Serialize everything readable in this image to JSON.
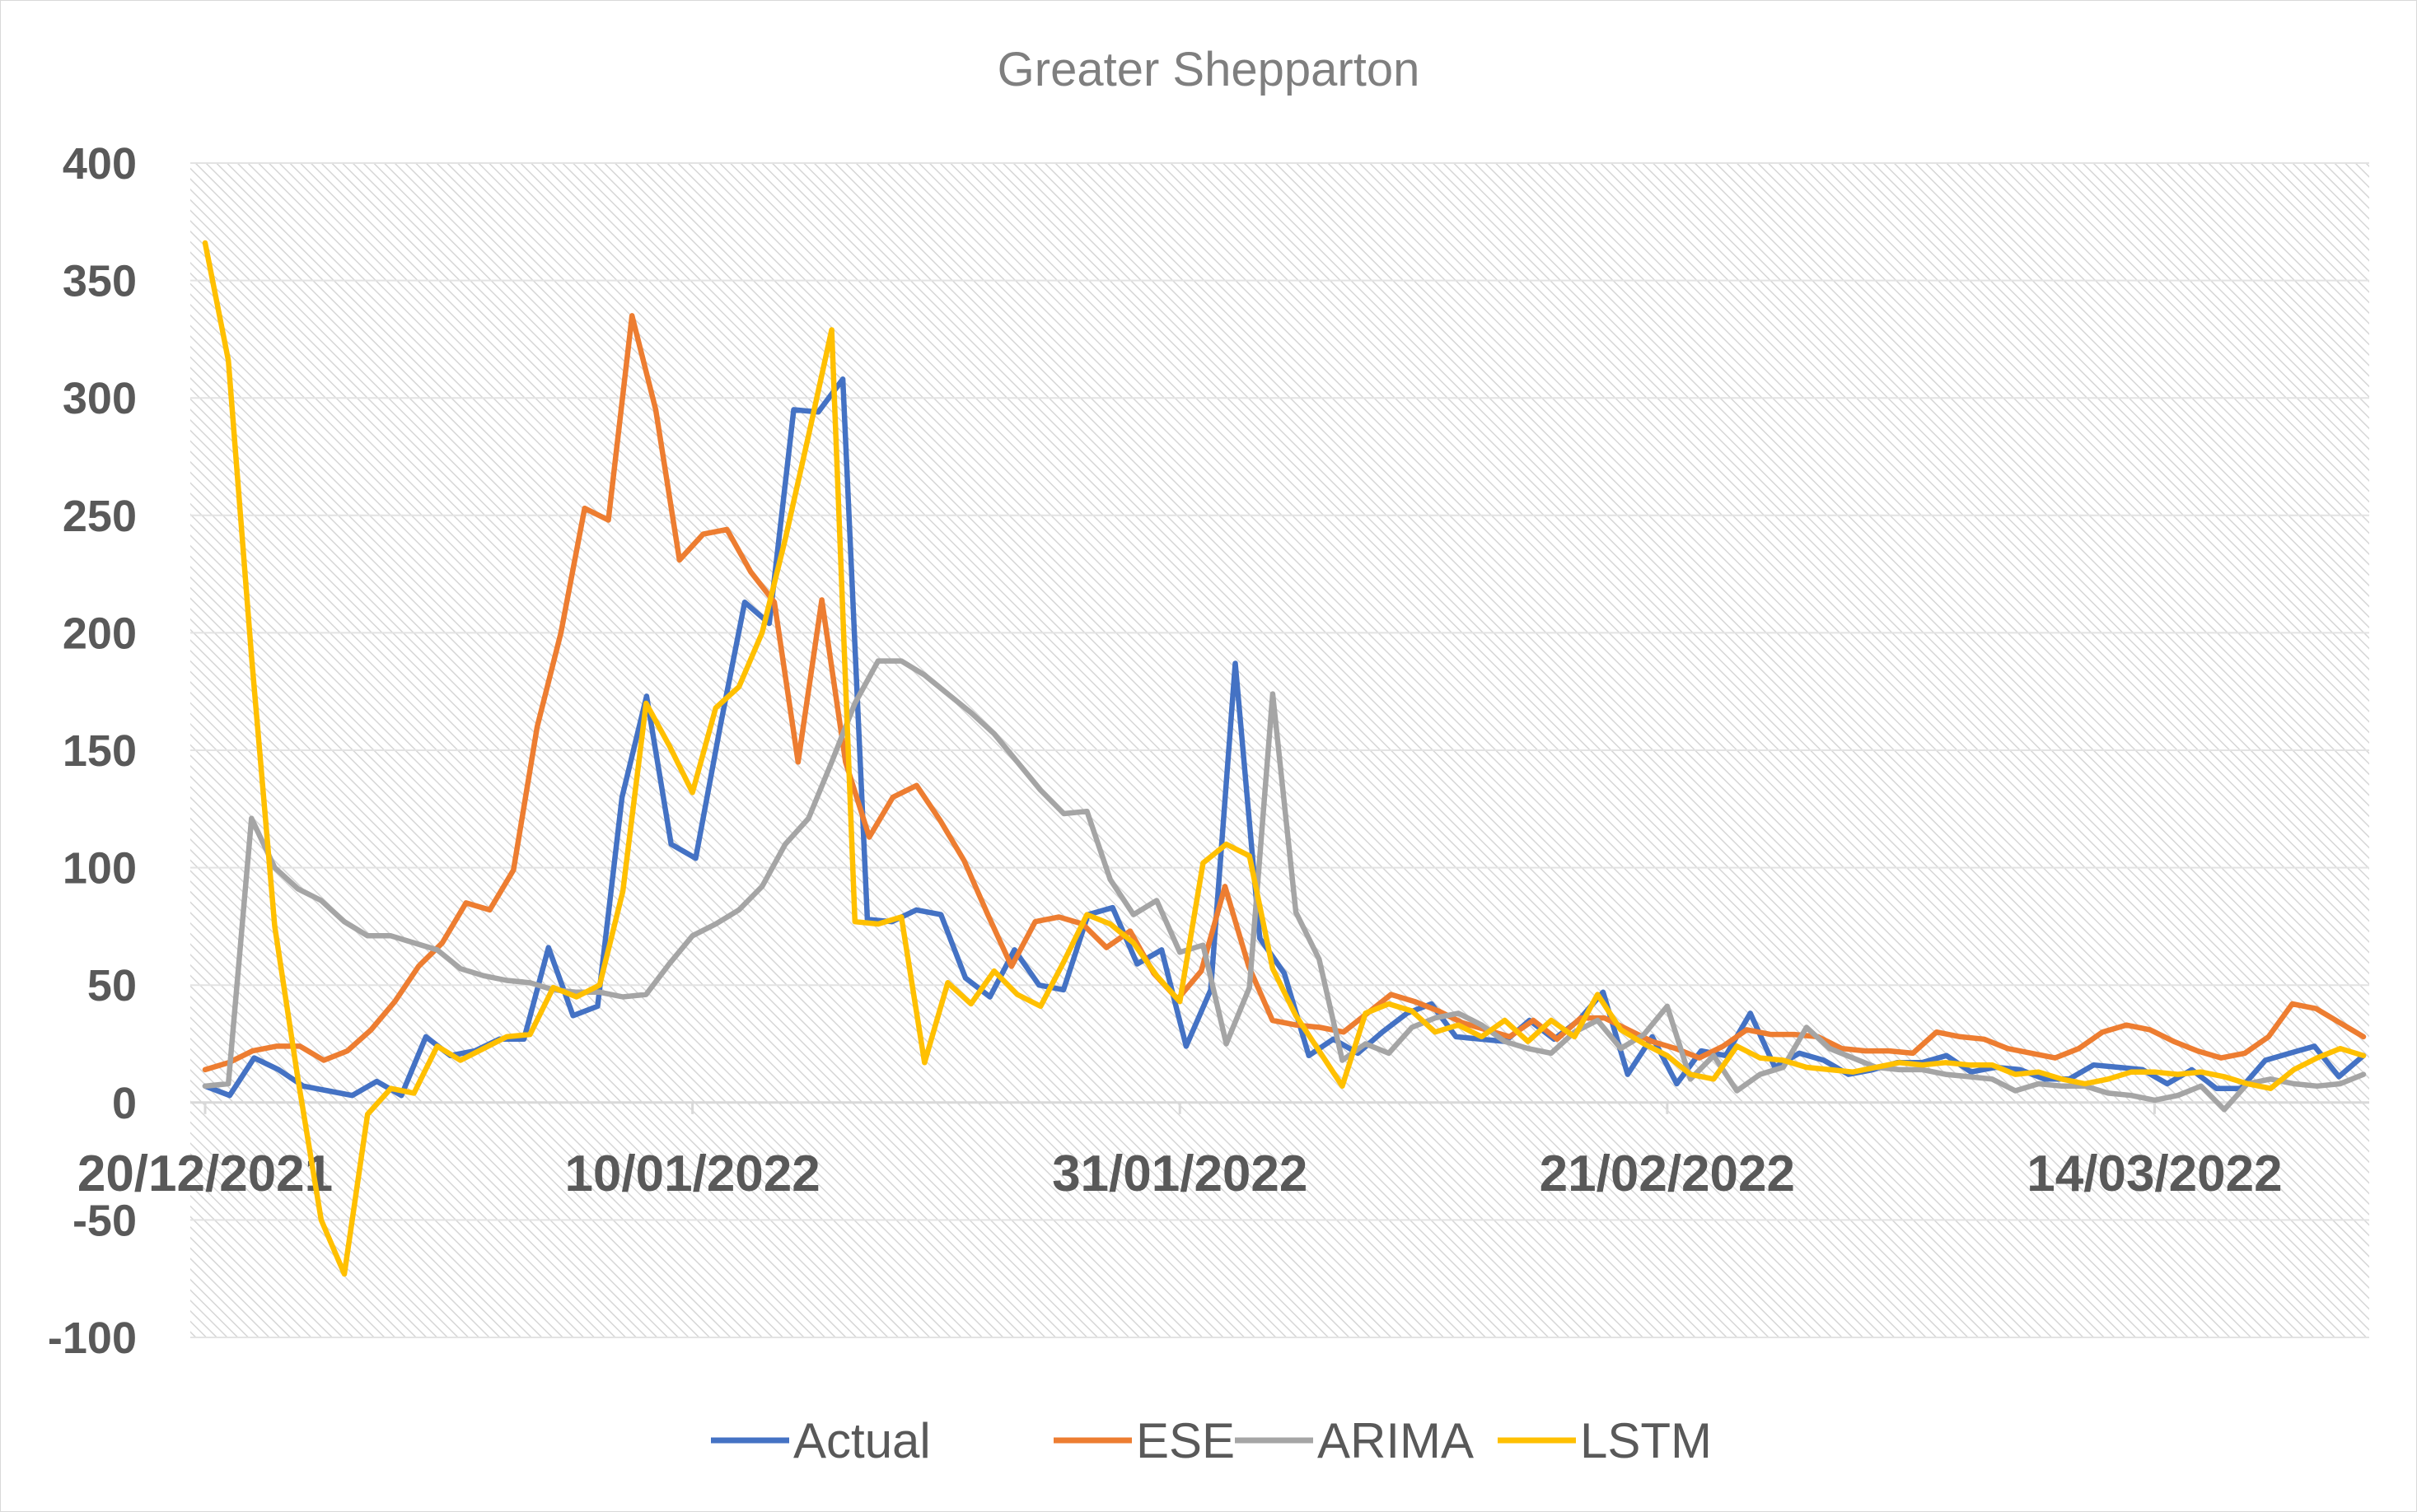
{
  "chart_data": {
    "type": "line",
    "title": "Greater Shepparton",
    "xlabel": "",
    "ylabel": "",
    "ylim": [
      -100,
      400
    ],
    "yticks": [
      -100,
      -50,
      0,
      50,
      100,
      150,
      200,
      250,
      300,
      350,
      400
    ],
    "x_start": "20/12/2021",
    "x_end": "23/03/2022",
    "xtick_labels": [
      "20/12/2021",
      "10/01/2022",
      "31/01/2022",
      "21/02/2022",
      "14/03/2022"
    ],
    "grid": true,
    "legend_position": "bottom",
    "series": [
      {
        "name": "Actual",
        "color": "#4472c4",
        "values": [
          7,
          3,
          19,
          14,
          7,
          5,
          3,
          9,
          3,
          28,
          20,
          22,
          27,
          27,
          66,
          37,
          41,
          130,
          173,
          110,
          104,
          160,
          213,
          204,
          295,
          294,
          308,
          78,
          77,
          82,
          80,
          53,
          45,
          65,
          50,
          48,
          80,
          83,
          59,
          65,
          24,
          48,
          187,
          70,
          55,
          20,
          27,
          21,
          30,
          38,
          42,
          28,
          27,
          26,
          35,
          27,
          35,
          47,
          12,
          28,
          8,
          22,
          20,
          38,
          15,
          21,
          18,
          12,
          14,
          17,
          17,
          20,
          13,
          15,
          14,
          10,
          10,
          16,
          15,
          14,
          8,
          14,
          6,
          6,
          18,
          21,
          24,
          11,
          20
        ]
      },
      {
        "name": "ESE",
        "color": "#ed7d31",
        "values": [
          14,
          17,
          22,
          24,
          24,
          18,
          22,
          31,
          43,
          58,
          68,
          85,
          82,
          99,
          160,
          200,
          253,
          248,
          335,
          295,
          231,
          242,
          244,
          226,
          213,
          145,
          214,
          145,
          113,
          130,
          135,
          120,
          103,
          80,
          58,
          77,
          79,
          76,
          66,
          73,
          55,
          44,
          56,
          92,
          58,
          35,
          33,
          32,
          30,
          38,
          46,
          43,
          39,
          34,
          31,
          28,
          35,
          27,
          36,
          36,
          31,
          26,
          23,
          19,
          24,
          31,
          29,
          29,
          28,
          23,
          22,
          22,
          21,
          30,
          28,
          27,
          23,
          21,
          19,
          23,
          30,
          33,
          31,
          26,
          22,
          19,
          21,
          28,
          42,
          40,
          34,
          28
        ]
      },
      {
        "name": "ARIMA",
        "color": "#a5a5a5",
        "values": [
          7,
          8,
          121,
          100,
          91,
          86,
          77,
          71,
          71,
          68,
          65,
          57,
          54,
          52,
          51,
          48,
          47,
          47,
          45,
          46,
          59,
          71,
          76,
          82,
          92,
          110,
          121,
          145,
          170,
          188,
          188,
          182,
          174,
          166,
          157,
          145,
          133,
          123,
          124,
          95,
          80,
          86,
          64,
          67,
          25,
          49,
          174,
          81,
          61,
          18,
          25,
          21,
          32,
          36,
          38,
          33,
          26,
          23,
          21,
          30,
          35,
          23,
          29,
          41,
          10,
          20,
          5,
          12,
          15,
          32,
          23,
          19,
          15,
          14,
          14,
          12,
          11,
          10,
          5,
          8,
          7,
          7,
          4,
          3,
          1,
          3,
          7,
          -3,
          8,
          10,
          8,
          7,
          8,
          12
        ]
      },
      {
        "name": "LSTM",
        "color": "#ffc000",
        "values": [
          366,
          316,
          190,
          75,
          10,
          -50,
          -73,
          -5,
          6,
          4,
          24,
          18,
          23,
          28,
          29,
          49,
          45,
          50,
          90,
          170,
          152,
          132,
          168,
          177,
          200,
          240,
          284,
          329,
          77,
          76,
          79,
          17,
          51,
          42,
          56,
          46,
          41,
          60,
          80,
          76,
          68,
          54,
          43,
          102,
          110,
          105,
          57,
          37,
          22,
          7,
          38,
          42,
          39,
          30,
          33,
          28,
          35,
          26,
          35,
          28,
          46,
          31,
          25,
          20,
          12,
          10,
          24,
          19,
          18,
          15,
          14,
          13,
          15,
          17,
          16,
          17,
          16,
          16,
          12,
          13,
          10,
          8,
          10,
          13,
          13,
          12,
          13,
          11,
          8,
          6,
          14,
          19,
          23,
          20
        ]
      }
    ]
  }
}
